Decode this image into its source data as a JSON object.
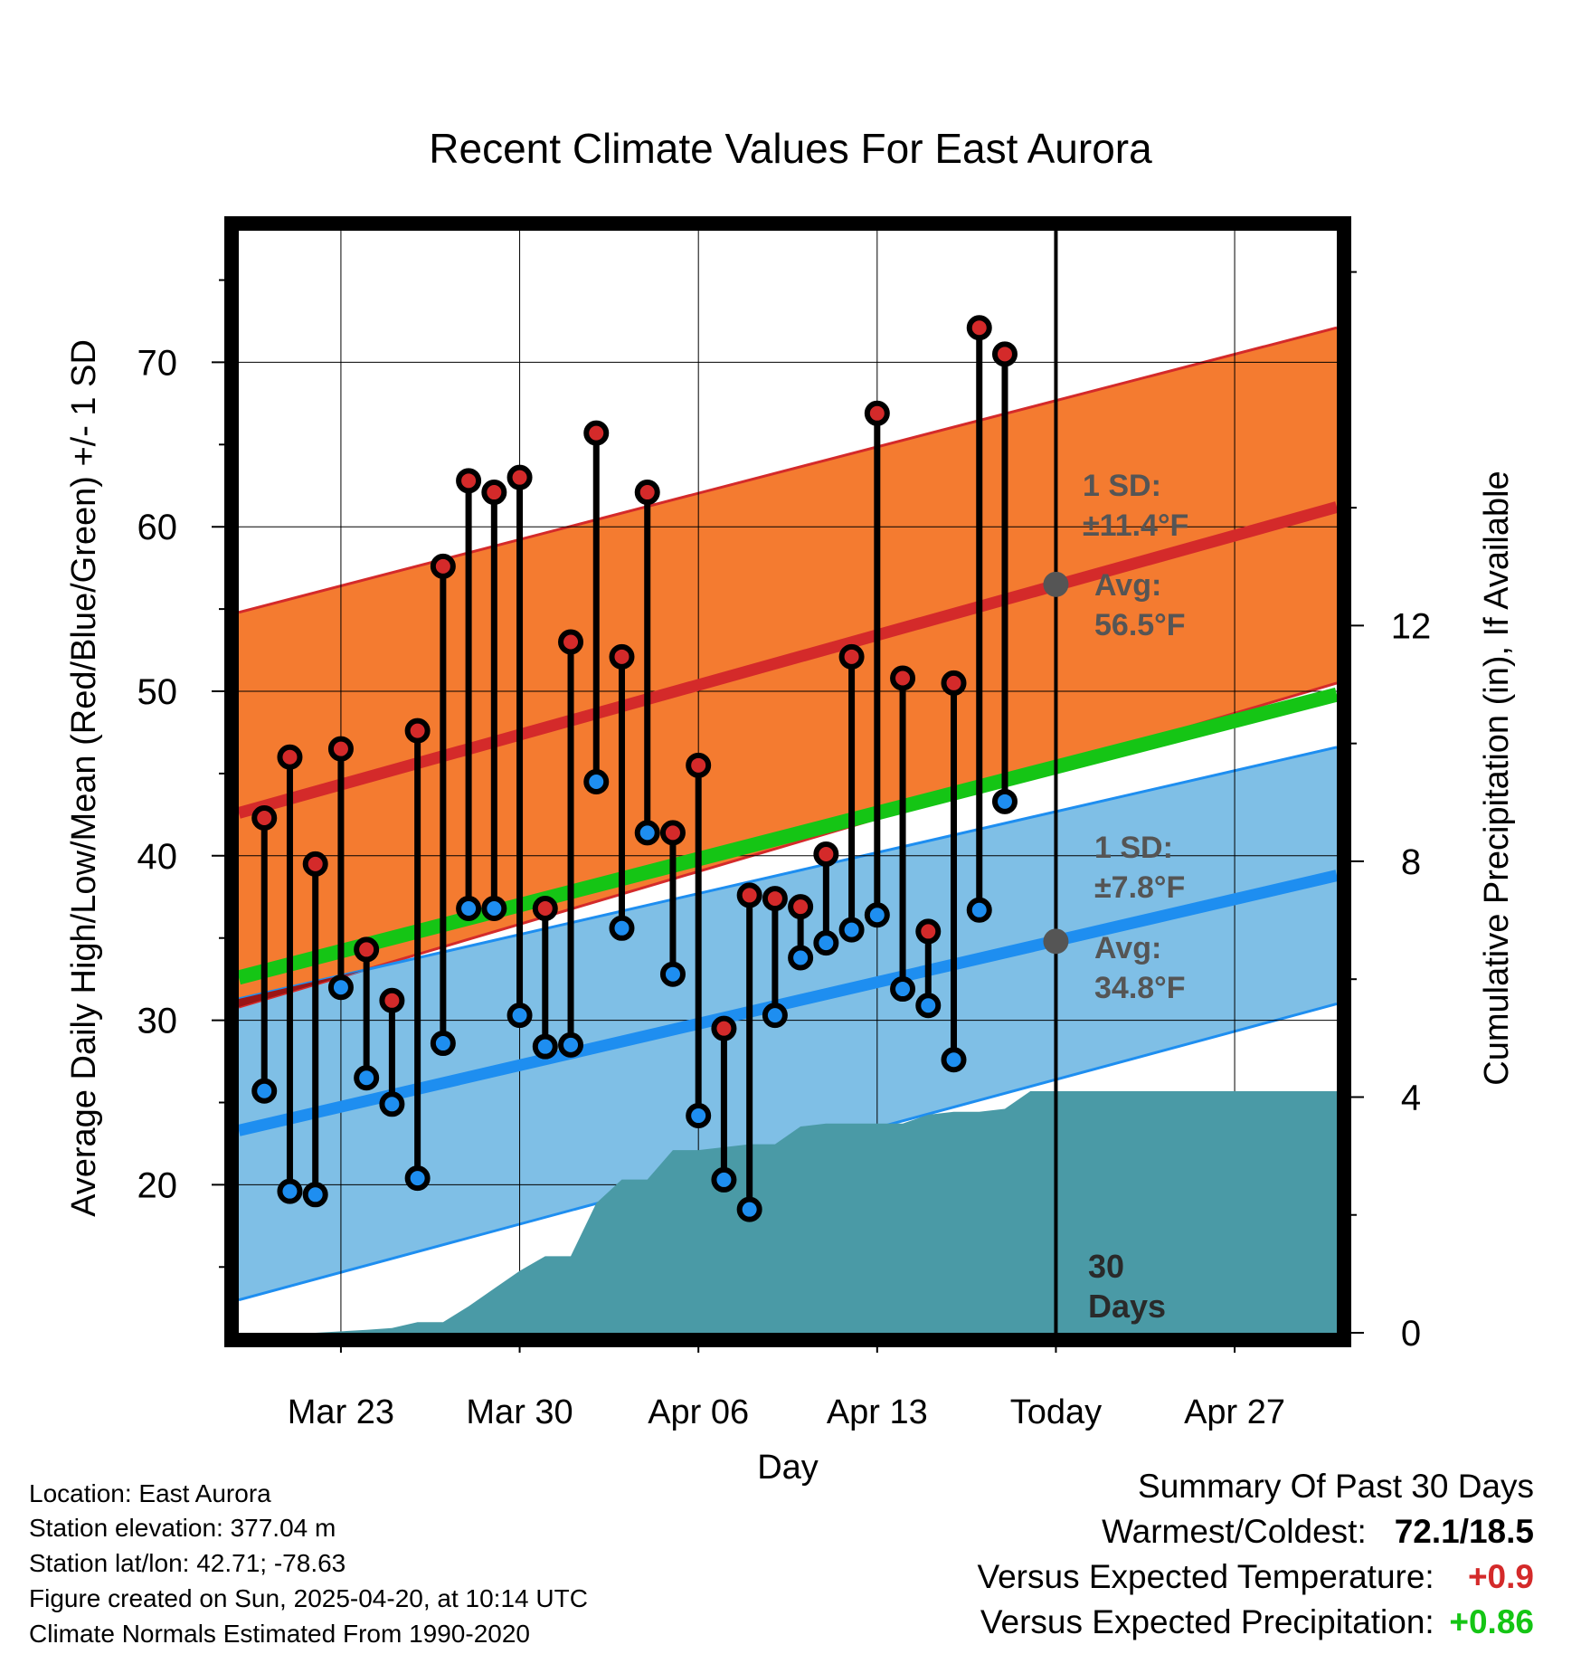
{
  "title": "Recent Climate Values For East Aurora",
  "chart_data": {
    "type": "line",
    "title": "Recent Climate Values For East Aurora",
    "xlabel": "Day",
    "ylabel_left": "Average Daily High/Low/Mean (Red/Blue/Green) +/- 1 SD",
    "ylabel_right": "Cumulative Precipitation (in), If Available",
    "x_range": [
      "2025-03-19",
      "2025-05-01"
    ],
    "ylim_left": [
      11,
      78
    ],
    "ylim_right": [
      0,
      18.7
    ],
    "x_ticks": [
      {
        "date": "2025-03-23",
        "label": "Mar 23"
      },
      {
        "date": "2025-03-30",
        "label": "Mar 30"
      },
      {
        "date": "2025-04-06",
        "label": "Apr 06"
      },
      {
        "date": "2025-04-13",
        "label": "Apr 13"
      },
      {
        "date": "2025-04-20",
        "label": "Today"
      },
      {
        "date": "2025-04-27",
        "label": "Apr 27"
      }
    ],
    "y_ticks_left": [
      20,
      30,
      40,
      50,
      60,
      70
    ],
    "y_ticks_right": [
      0,
      4,
      8,
      12
    ],
    "grid": true,
    "normals": {
      "start_date": "2025-03-19",
      "end_date": "2025-05-01",
      "high_mean": [
        42.6,
        61.2
      ],
      "high_upper": [
        54.8,
        72.1
      ],
      "high_lower": [
        30.8,
        50.5
      ],
      "low_mean": [
        23.3,
        38.8
      ],
      "low_upper": [
        31.3,
        46.6
      ],
      "low_lower": [
        13.0,
        31.0
      ],
      "avg_mean": [
        32.6,
        49.8
      ]
    },
    "series": [
      {
        "name": "High",
        "color": "#d42a2a",
        "x": [
          "2025-03-20",
          "2025-03-21",
          "2025-03-22",
          "2025-03-23",
          "2025-03-24",
          "2025-03-25",
          "2025-03-26",
          "2025-03-27",
          "2025-03-28",
          "2025-03-29",
          "2025-03-30",
          "2025-03-31",
          "2025-04-01",
          "2025-04-02",
          "2025-04-03",
          "2025-04-04",
          "2025-04-05",
          "2025-04-06",
          "2025-04-07",
          "2025-04-08",
          "2025-04-09",
          "2025-04-10",
          "2025-04-11",
          "2025-04-12",
          "2025-04-13",
          "2025-04-14",
          "2025-04-15",
          "2025-04-16",
          "2025-04-17",
          "2025-04-18",
          "2025-04-19"
        ],
        "values": [
          42.3,
          46.0,
          39.5,
          46.5,
          34.3,
          31.2,
          47.6,
          57.6,
          62.8,
          62.1,
          63.0,
          36.8,
          53.0,
          65.7,
          52.1,
          62.1,
          41.4,
          45.5,
          29.5,
          37.6,
          37.4,
          36.9,
          40.1,
          52.1,
          66.9,
          50.8,
          35.4,
          50.5,
          72.1,
          70.5,
          null
        ]
      },
      {
        "name": "Low",
        "color": "#2b8de8",
        "x": [
          "2025-03-20",
          "2025-03-21",
          "2025-03-22",
          "2025-03-23",
          "2025-03-24",
          "2025-03-25",
          "2025-03-26",
          "2025-03-27",
          "2025-03-28",
          "2025-03-29",
          "2025-03-30",
          "2025-03-31",
          "2025-04-01",
          "2025-04-02",
          "2025-04-03",
          "2025-04-04",
          "2025-04-05",
          "2025-04-06",
          "2025-04-07",
          "2025-04-08",
          "2025-04-09",
          "2025-04-10",
          "2025-04-11",
          "2025-04-12",
          "2025-04-13",
          "2025-04-14",
          "2025-04-15",
          "2025-04-16",
          "2025-04-17",
          "2025-04-18",
          "2025-04-19"
        ],
        "values": [
          25.7,
          19.6,
          19.4,
          32.0,
          26.5,
          24.9,
          20.4,
          28.6,
          36.8,
          36.8,
          30.3,
          28.4,
          28.5,
          44.5,
          35.6,
          41.4,
          32.8,
          24.2,
          20.3,
          18.5,
          30.3,
          33.8,
          34.7,
          35.5,
          36.4,
          31.9,
          30.9,
          27.6,
          36.7,
          43.3,
          null
        ]
      },
      {
        "name": "Cumulative Precipitation",
        "color": "#4a9aa6",
        "x": [
          "2025-03-22",
          "2025-03-24",
          "2025-03-25",
          "2025-03-26",
          "2025-03-27",
          "2025-03-28",
          "2025-03-29",
          "2025-03-30",
          "2025-03-31",
          "2025-04-01",
          "2025-04-02",
          "2025-04-03",
          "2025-04-04",
          "2025-04-05",
          "2025-04-06",
          "2025-04-07",
          "2025-04-08",
          "2025-04-09",
          "2025-04-10",
          "2025-04-11",
          "2025-04-12",
          "2025-04-13",
          "2025-04-14",
          "2025-04-15",
          "2025-04-16",
          "2025-04-17",
          "2025-04-18",
          "2025-04-19",
          "2025-05-01"
        ],
        "values": [
          0.0,
          0.05,
          0.08,
          0.18,
          0.18,
          0.45,
          0.75,
          1.05,
          1.3,
          1.3,
          2.2,
          2.6,
          2.6,
          3.1,
          3.1,
          3.15,
          3.2,
          3.2,
          3.5,
          3.55,
          3.55,
          3.55,
          3.55,
          3.7,
          3.75,
          3.75,
          3.8,
          4.1,
          4.1
        ]
      }
    ],
    "annotations": {
      "high_sd": "1 SD:",
      "high_sd_value": "±11.4°F",
      "high_avg": "Avg:",
      "high_avg_value": "56.5°F",
      "low_sd": "1 SD:",
      "low_sd_value": "±7.8°F",
      "low_avg": "Avg:",
      "low_avg_value": "34.8°F",
      "days_line1": "30",
      "days_line2": "Days",
      "today_high_avg": 56.5,
      "today_low_avg": 34.8
    },
    "colors": {
      "high_band": "#f47b30",
      "high_line": "#d42a2a",
      "low_band": "#7fbfe6",
      "low_line": "#1e8ef0",
      "avg_line": "#15c515",
      "overlap_band": "#9b1515",
      "precip": "#4a9aa6",
      "annotation": "#555555"
    }
  },
  "meta": {
    "location": "Location: East Aurora",
    "elevation": "Station elevation: 377.04 m",
    "latlon": "Station lat/lon: 42.71; -78.63",
    "created": "Figure created on Sun, 2025-04-20, at 10:14 UTC",
    "normals": "Climate Normals Estimated From 1990-2020"
  },
  "summary": {
    "heading": "Summary Of Past 30 Days",
    "warm_cold_label": "Warmest/Coldest:",
    "warm_cold_value": "72.1/18.5",
    "temp_label": "Versus Expected Temperature:",
    "temp_value": "+0.9",
    "temp_color": "#d42a2a",
    "precip_label": "Versus Expected Precipitation:",
    "precip_value": "+0.86",
    "precip_color": "#15c515"
  }
}
